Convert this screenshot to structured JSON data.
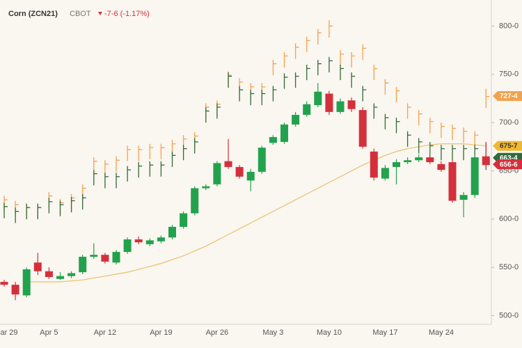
{
  "header": {
    "title": "Corn (ZCN21)",
    "exchange": "CBOT",
    "change": "-7-6 (-1.17%)"
  },
  "chart_data": {
    "type": "candlestick",
    "categories": [
      "ar 29",
      null,
      null,
      null,
      "Apr 5",
      null,
      null,
      null,
      null,
      "Apr 12",
      null,
      null,
      null,
      null,
      "Apr 19",
      null,
      null,
      null,
      null,
      "Apr 26",
      null,
      null,
      null,
      null,
      "May 3",
      null,
      null,
      null,
      null,
      "May 10",
      null,
      null,
      null,
      null,
      "May 17",
      null,
      null,
      null,
      null,
      "May 24",
      null,
      null,
      null,
      null
    ],
    "ylim": [
      491,
      827
    ],
    "yticks": [
      {
        "value": 500,
        "label": "500-0"
      },
      {
        "value": 550,
        "label": "550-0"
      },
      {
        "value": 600,
        "label": "600-0"
      },
      {
        "value": 650,
        "label": "650-0"
      },
      {
        "value": 700,
        "label": "700-0"
      },
      {
        "value": 750,
        "label": "750-0"
      },
      {
        "value": 800,
        "label": "800-0"
      }
    ],
    "grid": false,
    "bars": [
      {
        "color": "#f2a24e",
        "high": [
          624,
          619,
          616,
          616,
          628,
          621,
          626,
          636,
          664,
          661,
          665,
          676,
          676,
          678,
          678,
          682,
          687,
          690,
          720,
          723,
          753,
          746,
          741,
          741,
          765,
          773,
          782,
          789,
          797,
          806,
          775,
          773,
          781,
          760,
          745,
          737,
          720,
          713,
          705,
          700,
          698,
          695,
          691,
          735
        ],
        "low": [
          608,
          603,
          600,
          600,
          612,
          605,
          610,
          620,
          648,
          645,
          649,
          660,
          660,
          662,
          662,
          666,
          671,
          674,
          704,
          707,
          737,
          730,
          725,
          725,
          749,
          757,
          766,
          773,
          781,
          788,
          759,
          757,
          765,
          744,
          729,
          721,
          704,
          697,
          689,
          684,
          682,
          679,
          675,
          715
        ],
        "close": [
          620,
          615,
          612,
          612,
          624,
          617,
          622,
          632,
          660,
          657,
          661,
          672,
          672,
          674,
          674,
          678,
          683,
          686,
          716,
          719,
          749,
          742,
          737,
          737,
          761,
          769,
          778,
          785,
          793,
          800,
          771,
          769,
          777,
          756,
          741,
          733,
          716,
          709,
          701,
          696,
          694,
          691,
          687,
          727
        ],
        "last_value": 727.5,
        "last_label": "727-4"
      },
      {
        "color": "#2f6a3a",
        "high": [
          617,
          612,
          616,
          616,
          622,
          619,
          623,
          626,
          651,
          648,
          648,
          655,
          659,
          660,
          660,
          670,
          677,
          684,
          716,
          720,
          752,
          738,
          734,
          734,
          738,
          751,
          752,
          760,
          765,
          768,
          760,
          752,
          738,
          720,
          709,
          705,
          691,
          684,
          680,
          677,
          677,
          677,
          677,
          679
        ],
        "low": [
          601,
          596,
          600,
          600,
          606,
          603,
          607,
          610,
          635,
          632,
          632,
          639,
          643,
          644,
          644,
          654,
          661,
          668,
          700,
          704,
          736,
          722,
          718,
          718,
          722,
          735,
          736,
          744,
          749,
          752,
          744,
          736,
          722,
          704,
          693,
          689,
          675,
          668,
          664,
          661,
          661,
          661,
          661,
          651
        ],
        "close": [
          613,
          608,
          612,
          612,
          618,
          615,
          619,
          622,
          647,
          644,
          644,
          651,
          655,
          656,
          656,
          666,
          673,
          680,
          712,
          716,
          748,
          734,
          730,
          730,
          734,
          747,
          748,
          756,
          761,
          764,
          756,
          748,
          734,
          716,
          705,
          701,
          687,
          680,
          676,
          673,
          673,
          673,
          673,
          663
        ],
        "last_value": 663.5,
        "last_label": "663-4"
      }
    ],
    "candles": {
      "color_up": "#22a24c",
      "color_down": "#d4303c",
      "open": [
        535,
        532,
        521,
        555,
        546,
        538,
        541,
        545,
        561,
        563,
        555,
        566,
        579,
        574,
        577,
        581,
        592,
        606,
        632,
        636,
        660,
        654,
        640,
        649,
        679,
        680,
        698,
        708,
        718,
        730,
        711,
        723,
        713,
        670,
        642,
        654,
        659,
        661,
        664,
        657,
        659,
        620,
        625,
        665
      ],
      "high": [
        537,
        535,
        550,
        565,
        550,
        545,
        546,
        563,
        575,
        565,
        568,
        581,
        582,
        580,
        583,
        594,
        608,
        634,
        636,
        660,
        683,
        656,
        652,
        676,
        687,
        700,
        711,
        722,
        741,
        733,
        725,
        726,
        716,
        673,
        656,
        662,
        664,
        667,
        667,
        660,
        662,
        628,
        667,
        680
      ],
      "low": [
        530,
        516,
        519,
        542,
        538,
        537,
        539,
        543,
        559,
        554,
        553,
        564,
        574,
        572,
        575,
        579,
        590,
        604,
        630,
        634,
        652,
        642,
        629,
        647,
        677,
        678,
        696,
        706,
        716,
        708,
        709,
        711,
        673,
        640,
        640,
        636,
        657,
        659,
        657,
        649,
        617,
        602,
        622,
        653
      ],
      "close": [
        532,
        522,
        548,
        546,
        540,
        541,
        544,
        561,
        563,
        556,
        566,
        579,
        576,
        578,
        581,
        592,
        606,
        632,
        634,
        658,
        654,
        644,
        649,
        674,
        685,
        698,
        708,
        719,
        732,
        711,
        722,
        714,
        675,
        643,
        653,
        659,
        661,
        664,
        659,
        651,
        619,
        625,
        664,
        656
      ],
      "last_value": 656.75,
      "last_label": "656-6"
    },
    "ma": {
      "color": "#e8c26a",
      "values": [
        null,
        null,
        535,
        535,
        535,
        535,
        536,
        537,
        539,
        541,
        543,
        545,
        548,
        551,
        554,
        558,
        562,
        567,
        572,
        578,
        584,
        590,
        596,
        602,
        608,
        614,
        620,
        626,
        632,
        638,
        644,
        650,
        656,
        661,
        666,
        670,
        673,
        675,
        677,
        678,
        678,
        678,
        677,
        676
      ],
      "last_value": 675.875,
      "last_label": "675-7"
    }
  }
}
